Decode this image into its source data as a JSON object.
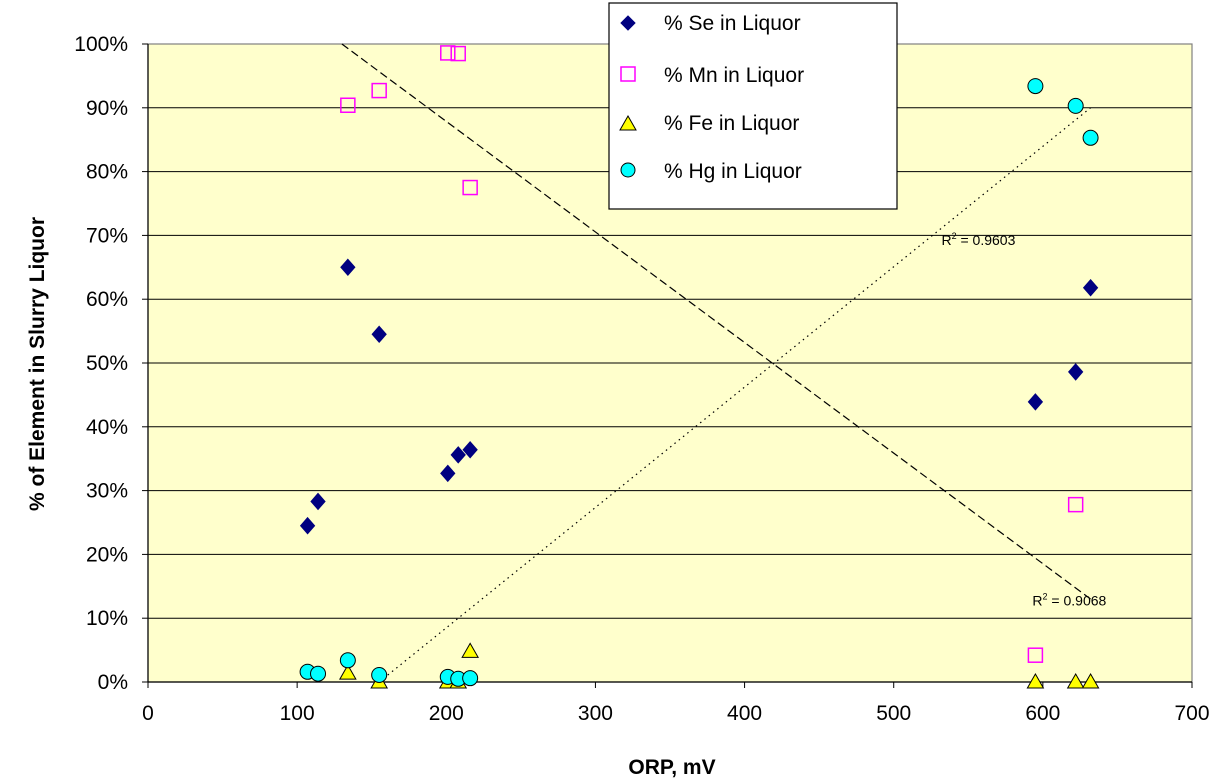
{
  "chart_data": {
    "type": "scatter",
    "title": "",
    "xlabel": "ORP, mV",
    "ylabel": "% of Element in Slurry Liquor",
    "xlim": [
      0,
      700
    ],
    "ylim": [
      0,
      1
    ],
    "x_ticks": [
      0,
      100,
      200,
      300,
      400,
      500,
      600,
      700
    ],
    "x_tick_labels": [
      "0",
      "100",
      "200",
      "300",
      "400",
      "500",
      "600",
      "700"
    ],
    "y_ticks": [
      0,
      0.1,
      0.2,
      0.3,
      0.4,
      0.5,
      0.6,
      0.7,
      0.8,
      0.9,
      1.0
    ],
    "y_tick_labels": [
      "0%",
      "10%",
      "20%",
      "30%",
      "40%",
      "50%",
      "60%",
      "70%",
      "80%",
      "90%",
      "100%"
    ],
    "grid": "horizontal",
    "legend_position": "top-center",
    "plot_background": "#ffffcc",
    "series": [
      {
        "name": "% Se in Liquor",
        "marker": "diamond",
        "color": "#000080",
        "points": [
          [
            107,
            0.245
          ],
          [
            114,
            0.283
          ],
          [
            134,
            0.65
          ],
          [
            155,
            0.545
          ],
          [
            201,
            0.327
          ],
          [
            208,
            0.356
          ],
          [
            216,
            0.364
          ],
          [
            595,
            0.439
          ],
          [
            622,
            0.486
          ],
          [
            632,
            0.618
          ]
        ]
      },
      {
        "name": "% Mn in Liquor",
        "marker": "square-open",
        "color": "#ff00ff",
        "points": [
          [
            134,
            0.904
          ],
          [
            155,
            0.927
          ],
          [
            201,
            0.986
          ],
          [
            208,
            0.985
          ],
          [
            216,
            0.775
          ],
          [
            595,
            0.042
          ],
          [
            622,
            0.278
          ]
        ]
      },
      {
        "name": "% Fe in Liquor",
        "marker": "triangle",
        "color": "#ffff00",
        "points": [
          [
            134,
            0.014
          ],
          [
            155,
            0.0
          ],
          [
            201,
            0.0
          ],
          [
            208,
            0.0
          ],
          [
            216,
            0.048
          ],
          [
            595,
            0.0
          ],
          [
            622,
            0.0
          ],
          [
            632,
            0.0
          ]
        ]
      },
      {
        "name": "% Hg in Liquor",
        "marker": "circle",
        "color": "#00ffff",
        "points": [
          [
            107,
            0.016
          ],
          [
            114,
            0.013
          ],
          [
            134,
            0.034
          ],
          [
            155,
            0.011
          ],
          [
            201,
            0.008
          ],
          [
            208,
            0.005
          ],
          [
            216,
            0.006
          ],
          [
            595,
            0.934
          ],
          [
            622,
            0.903
          ],
          [
            632,
            0.853
          ]
        ]
      }
    ],
    "trendlines": [
      {
        "style": "dashed",
        "from": [
          130,
          1.0
        ],
        "to": [
          632,
          0.13
        ],
        "r2_label": "R",
        "r2_sup": "2",
        "r2_value": " = 0.9068",
        "label_at": [
          593,
          0.12
        ]
      },
      {
        "style": "dotted",
        "from": [
          155,
          0.0
        ],
        "to": [
          632,
          0.9
        ],
        "r2_label": "R",
        "r2_sup": "2",
        "r2_value": " = 0.9603",
        "label_at": [
          532,
          0.685
        ]
      }
    ]
  }
}
